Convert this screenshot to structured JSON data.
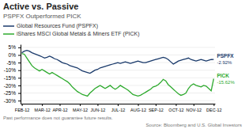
{
  "chart_data": {
    "type": "line",
    "title": "Active vs. Passive",
    "subtitle": "PSPFX Outperformed PICK",
    "categories": [
      "FEB-12",
      null,
      null,
      null,
      null,
      null,
      null,
      null,
      "MAR-12",
      null,
      null,
      null,
      null,
      null,
      null,
      "APR-12",
      null,
      null,
      null,
      null,
      null,
      null,
      null,
      "MAY-12",
      null,
      null,
      null,
      null,
      null,
      null,
      "JUN-12",
      null,
      null,
      null,
      null,
      null,
      null,
      null,
      "JUL-12",
      null,
      null,
      null,
      null,
      null,
      null,
      null,
      "AUG-12",
      null,
      null,
      null,
      null,
      null,
      null,
      "SEP-12",
      null,
      null,
      null,
      null,
      null,
      null,
      null,
      "OCT-12",
      null,
      null,
      null,
      null,
      null,
      null,
      "NOV-12",
      null,
      null,
      null,
      null,
      null,
      null,
      null,
      "DEC-12"
    ],
    "series": [
      {
        "name": "Global Resources Fund (PSPFX)",
        "color": "#1a3a6b",
        "values": [
          1.5,
          2.5,
          3.0,
          2.5,
          1.5,
          0.8,
          0.2,
          -0.5,
          -1.2,
          -2.0,
          -1.5,
          -0.8,
          -1.5,
          -2.5,
          -3.0,
          -4.0,
          -5.0,
          -5.5,
          -6.0,
          -7.0,
          -7.5,
          -8.0,
          -8.5,
          -9.5,
          -10.5,
          -11.0,
          -11.5,
          -12.0,
          -11.0,
          -10.0,
          -9.5,
          -8.5,
          -8.0,
          -7.5,
          -7.0,
          -6.5,
          -6.0,
          -5.5,
          -5.0,
          -5.5,
          -5.0,
          -4.5,
          -5.0,
          -5.5,
          -5.0,
          -4.5,
          -4.0,
          -4.5,
          -5.0,
          -5.0,
          -4.5,
          -4.0,
          -3.5,
          -3.0,
          -2.5,
          -2.0,
          -1.5,
          -2.0,
          -3.0,
          -4.5,
          -6.0,
          -5.0,
          -4.0,
          -3.5,
          -3.0,
          -2.5,
          -2.0,
          -3.0,
          -3.5,
          -4.0,
          -3.5,
          -3.0,
          -3.5,
          -4.0,
          -3.5,
          -3.0,
          -2.92
        ]
      },
      {
        "name": "iShares MSCI Global Metals & Miners ETF (PICK)",
        "color": "#2eaa2e",
        "values": [
          1.0,
          0.5,
          -2.0,
          -4.5,
          -7.0,
          -8.5,
          -9.5,
          -10.5,
          -9.5,
          -10.5,
          -11.5,
          -12.5,
          -11.5,
          -12.5,
          -13.5,
          -14.5,
          -15.5,
          -16.5,
          -17.5,
          -19.0,
          -21.0,
          -22.5,
          -24.0,
          -25.0,
          -26.0,
          -26.5,
          -27.0,
          -25.0,
          -23.5,
          -22.0,
          -21.0,
          -20.0,
          -21.0,
          -22.0,
          -21.0,
          -20.0,
          -21.5,
          -22.5,
          -21.5,
          -20.0,
          -21.0,
          -22.0,
          -23.0,
          -24.5,
          -26.0,
          -26.5,
          -27.0,
          -26.5,
          -25.5,
          -24.5,
          -23.5,
          -22.5,
          -21.0,
          -20.5,
          -19.5,
          -18.0,
          -16.0,
          -17.0,
          -19.5,
          -21.0,
          -22.5,
          -24.0,
          -25.5,
          -26.5,
          -26.0,
          -25.0,
          -22.0,
          -20.0,
          -19.0,
          -20.0,
          -20.5,
          -21.0,
          -20.0,
          -20.5,
          -22.0,
          -23.5,
          -15.62
        ]
      }
    ],
    "ylim": [
      -32,
      7
    ],
    "yticks": [
      {
        "value": 5,
        "label": "5%"
      },
      {
        "value": 0,
        "label": "0%"
      },
      {
        "value": -5,
        "label": "-5%"
      },
      {
        "value": -10,
        "label": "-10%"
      },
      {
        "value": -15,
        "label": "-15%"
      },
      {
        "value": -20,
        "label": "-20%"
      },
      {
        "value": -25,
        "label": "-25%"
      },
      {
        "value": -30,
        "label": "-30%"
      }
    ],
    "grid": true,
    "legend": "top",
    "annotations": [
      {
        "text": "PSPFX",
        "series": 0
      },
      {
        "text": "-2.92%",
        "series": 0
      },
      {
        "text": "PICK",
        "series": 1
      },
      {
        "text": "-15.62%",
        "series": 1
      }
    ],
    "footnote": "Past performance does not guarantee future results.",
    "source": "Source: Bloomberg and U.S. Global Investors"
  }
}
